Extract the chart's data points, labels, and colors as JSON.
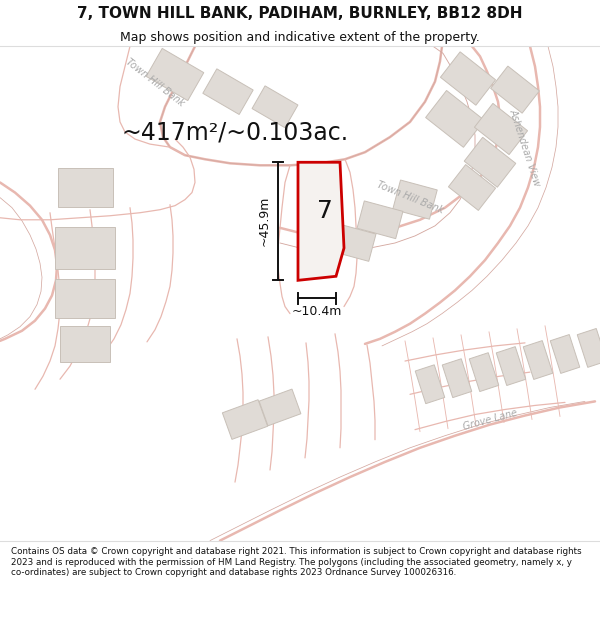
{
  "title": "7, TOWN HILL BANK, PADIHAM, BURNLEY, BB12 8DH",
  "subtitle": "Map shows position and indicative extent of the property.",
  "footer": "Contains OS data © Crown copyright and database right 2021. This information is subject to Crown copyright and database rights 2023 and is reproduced with the permission of HM Land Registry. The polygons (including the associated geometry, namely x, y co-ordinates) are subject to Crown copyright and database rights 2023 Ordnance Survey 100026316.",
  "bg_color": "#f8f6f4",
  "title_area_color": "#ffffff",
  "footer_area_color": "#ffffff",
  "road_color": "#e8b8b0",
  "building_fill": "#e0dbd6",
  "building_outline": "#c8c0b8",
  "highlight_color": "#cc0000",
  "highlight_fill": "#ffffff",
  "measure_color": "#111111",
  "area_text": "~417m²/~0.103ac.",
  "dim_width": "~10.4m",
  "dim_height": "~45.9m",
  "number_label": "7",
  "fig_width": 6.0,
  "fig_height": 6.25,
  "dpi": 100,
  "road_lw_main": 1.8,
  "road_lw_thin": 0.9
}
